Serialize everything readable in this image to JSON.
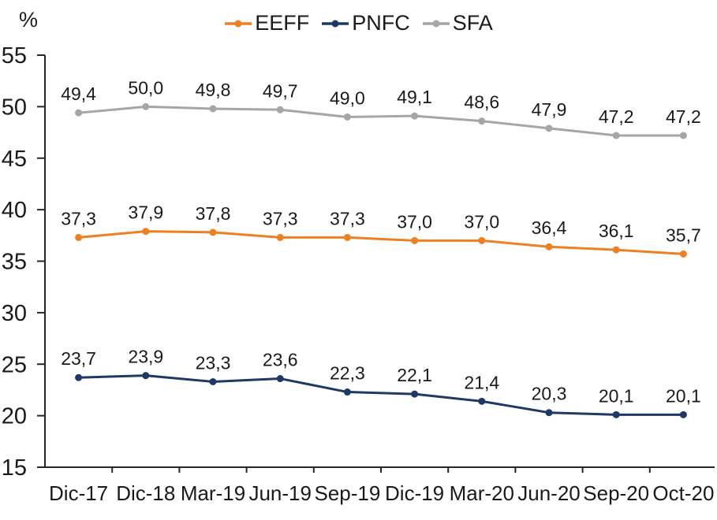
{
  "colors": {
    "background": "#FFFFFF",
    "axis": "#262626",
    "text": "#1A1A1A",
    "eeff": "#ED8022",
    "pnfc": "#1F3864",
    "sfa": "#A6A6A6"
  },
  "chart_data": {
    "type": "line",
    "title": "",
    "ylabel": "%",
    "xlabel": "",
    "ylim": [
      15,
      55
    ],
    "yticks": [
      15,
      20,
      25,
      30,
      35,
      40,
      45,
      50,
      55
    ],
    "grid": false,
    "legend_position": "top",
    "decimal_separator": ",",
    "categories": [
      "Dic-17",
      "Dic-18",
      "Mar-19",
      "Jun-19",
      "Sep-19",
      "Dic-19",
      "Mar-20",
      "Jun-20",
      "Sep-20",
      "Oct-20"
    ],
    "series": [
      {
        "name": "EEFF",
        "color": "#ED8022",
        "values": [
          37.3,
          37.9,
          37.8,
          37.3,
          37.3,
          37.0,
          37.0,
          36.4,
          36.1,
          35.7
        ],
        "point_labels": [
          "37,3",
          "37,9",
          "37,8",
          "37,3",
          "37,3",
          "37,0",
          "37,0",
          "36,4",
          "36,1",
          "35,7"
        ]
      },
      {
        "name": "PNFC",
        "color": "#1F3864",
        "values": [
          23.7,
          23.9,
          23.3,
          23.6,
          22.3,
          22.1,
          21.4,
          20.3,
          20.1,
          20.1
        ],
        "point_labels": [
          "23,7",
          "23,9",
          "23,3",
          "23,6",
          "22,3",
          "22,1",
          "21,4",
          "20,3",
          "20,1",
          "20,1"
        ]
      },
      {
        "name": "SFA",
        "color": "#A6A6A6",
        "values": [
          49.4,
          50.0,
          49.8,
          49.7,
          49.0,
          49.1,
          48.6,
          47.9,
          47.2,
          47.2
        ],
        "point_labels": [
          "49,4",
          "50,0",
          "49,8",
          "49,7",
          "49,0",
          "49,1",
          "48,6",
          "47,9",
          "47,2",
          "47,2"
        ]
      }
    ]
  }
}
